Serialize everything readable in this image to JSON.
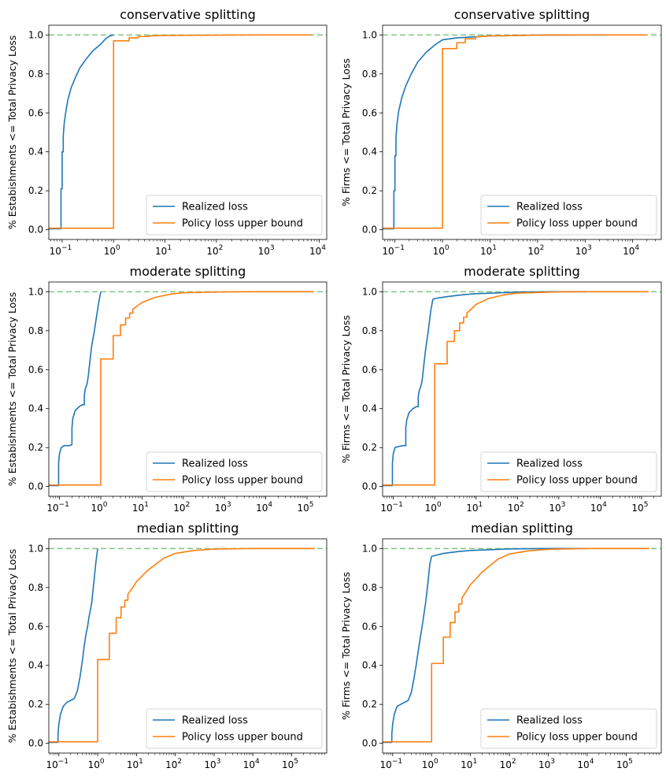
{
  "colors": {
    "realized": "#1f77b4",
    "policy": "#ff7f0e",
    "reference": "#2ca02c"
  },
  "legend_labels": [
    "Realized loss",
    "Policy loss upper bound"
  ],
  "chart_data": [
    {
      "type": "line",
      "title": "conservative splitting",
      "ylabel": "% Estabishments <= Total Privacy Loss",
      "xlabel": "",
      "xscale": "log",
      "xlim": [
        0.055,
        14000
      ],
      "ylim": [
        -0.05,
        1.05
      ],
      "xticks": [
        {
          "exp": "-1",
          "value": 0.1
        },
        {
          "exp": "0",
          "value": 1
        },
        {
          "exp": "1",
          "value": 10
        },
        {
          "exp": "2",
          "value": 100
        },
        {
          "exp": "3",
          "value": 1000
        },
        {
          "exp": "4",
          "value": 10000
        }
      ],
      "yticks": [
        "0.0",
        "0.2",
        "0.4",
        "0.6",
        "0.8",
        "1.0"
      ],
      "legend_position": "lower right",
      "reference_line": {
        "y": 1.0,
        "style": "dashed"
      },
      "series": [
        {
          "name": "Realized loss",
          "x": [
            0.05,
            0.095,
            0.095,
            0.1,
            0.1,
            0.105,
            0.105,
            0.11,
            0.12,
            0.13,
            0.15,
            0.18,
            0.22,
            0.3,
            0.4,
            0.55,
            0.7,
            0.85,
            1.0
          ],
          "y": [
            0.005,
            0.005,
            0.21,
            0.21,
            0.4,
            0.4,
            0.48,
            0.55,
            0.62,
            0.67,
            0.73,
            0.78,
            0.83,
            0.88,
            0.92,
            0.95,
            0.98,
            0.995,
            1.0
          ]
        },
        {
          "name": "Policy loss upper bound",
          "x": [
            0.05,
            1.0,
            1.0,
            2.0,
            2.0,
            3.0,
            3.0,
            5.0,
            5.0,
            10,
            100,
            1000,
            7000
          ],
          "y": [
            0.008,
            0.008,
            0.97,
            0.97,
            0.985,
            0.985,
            0.992,
            0.992,
            0.995,
            0.997,
            0.999,
            1.0,
            1.0
          ]
        }
      ]
    },
    {
      "type": "line",
      "title": "conservative splitting",
      "ylabel": "% Firms <= Total Privacy Loss",
      "xlabel": "",
      "xscale": "log",
      "xlim": [
        0.055,
        40000
      ],
      "ylim": [
        -0.05,
        1.05
      ],
      "xticks": [
        {
          "exp": "-1",
          "value": 0.1
        },
        {
          "exp": "0",
          "value": 1
        },
        {
          "exp": "1",
          "value": 10
        },
        {
          "exp": "2",
          "value": 100
        },
        {
          "exp": "3",
          "value": 1000
        },
        {
          "exp": "4",
          "value": 10000
        }
      ],
      "yticks": [
        "0.0",
        "0.2",
        "0.4",
        "0.6",
        "0.8",
        "1.0"
      ],
      "legend_position": "lower right",
      "reference_line": {
        "y": 1.0,
        "style": "dashed"
      },
      "series": [
        {
          "name": "Realized loss",
          "x": [
            0.05,
            0.095,
            0.095,
            0.1,
            0.1,
            0.105,
            0.105,
            0.11,
            0.12,
            0.14,
            0.17,
            0.22,
            0.3,
            0.45,
            0.7,
            1.0,
            2.0,
            10,
            100,
            1000,
            3000
          ],
          "y": [
            0.005,
            0.005,
            0.2,
            0.2,
            0.38,
            0.38,
            0.47,
            0.54,
            0.61,
            0.68,
            0.74,
            0.8,
            0.86,
            0.91,
            0.95,
            0.975,
            0.985,
            0.995,
            0.999,
            1.0,
            1.0
          ]
        },
        {
          "name": "Policy loss upper bound",
          "x": [
            0.05,
            1.0,
            1.0,
            2.0,
            2.0,
            3.0,
            3.0,
            5.0,
            5.0,
            10,
            100,
            1000,
            20000
          ],
          "y": [
            0.008,
            0.008,
            0.93,
            0.93,
            0.96,
            0.96,
            0.98,
            0.98,
            0.99,
            0.995,
            0.999,
            1.0,
            1.0
          ]
        }
      ]
    },
    {
      "type": "line",
      "title": "moderate splitting",
      "ylabel": "% Estabishments <= Total Privacy Loss",
      "xlabel": "",
      "xscale": "log",
      "xlim": [
        0.055,
        300000
      ],
      "ylim": [
        -0.05,
        1.05
      ],
      "xticks": [
        {
          "exp": "-1",
          "value": 0.1
        },
        {
          "exp": "0",
          "value": 1
        },
        {
          "exp": "1",
          "value": 10
        },
        {
          "exp": "2",
          "value": 100
        },
        {
          "exp": "3",
          "value": 1000
        },
        {
          "exp": "4",
          "value": 10000
        },
        {
          "exp": "5",
          "value": 100000
        }
      ],
      "yticks": [
        "0.0",
        "0.2",
        "0.4",
        "0.6",
        "0.8",
        "1.0"
      ],
      "legend_position": "lower right",
      "reference_line": {
        "y": 1.0,
        "style": "dashed"
      },
      "series": [
        {
          "name": "Realized loss",
          "x": [
            0.05,
            0.095,
            0.095,
            0.1,
            0.11,
            0.13,
            0.17,
            0.2,
            0.2,
            0.21,
            0.24,
            0.3,
            0.36,
            0.4,
            0.4,
            0.42,
            0.47,
            0.5,
            0.55,
            0.6,
            0.7,
            0.8,
            0.9,
            1.0
          ],
          "y": [
            0.005,
            0.005,
            0.12,
            0.17,
            0.2,
            0.21,
            0.21,
            0.215,
            0.3,
            0.35,
            0.39,
            0.41,
            0.42,
            0.42,
            0.47,
            0.5,
            0.53,
            0.57,
            0.65,
            0.72,
            0.8,
            0.88,
            0.95,
            1.0
          ]
        },
        {
          "name": "Policy loss upper bound",
          "x": [
            0.05,
            1.0,
            1.0,
            2.0,
            2.0,
            3.0,
            3.0,
            4.0,
            4.0,
            5.0,
            5.0,
            6.0,
            6.0,
            8.0,
            10,
            20,
            50,
            100,
            1000,
            10000,
            150000
          ],
          "y": [
            0.008,
            0.008,
            0.655,
            0.655,
            0.775,
            0.775,
            0.83,
            0.83,
            0.865,
            0.865,
            0.89,
            0.89,
            0.91,
            0.93,
            0.945,
            0.97,
            0.988,
            0.995,
            0.999,
            1.0,
            1.0
          ]
        }
      ]
    },
    {
      "type": "line",
      "title": "moderate splitting",
      "ylabel": "% Firms <= Total Privacy Loss",
      "xlabel": "",
      "xscale": "log",
      "xlim": [
        0.055,
        300000
      ],
      "ylim": [
        -0.05,
        1.05
      ],
      "xticks": [
        {
          "exp": "-1",
          "value": 0.1
        },
        {
          "exp": "0",
          "value": 1
        },
        {
          "exp": "1",
          "value": 10
        },
        {
          "exp": "2",
          "value": 100
        },
        {
          "exp": "3",
          "value": 1000
        },
        {
          "exp": "4",
          "value": 10000
        },
        {
          "exp": "5",
          "value": 100000
        }
      ],
      "yticks": [
        "0.0",
        "0.2",
        "0.4",
        "0.6",
        "0.8",
        "1.0"
      ],
      "legend_position": "lower right",
      "reference_line": {
        "y": 1.0,
        "style": "dashed"
      },
      "series": [
        {
          "name": "Realized loss",
          "x": [
            0.05,
            0.095,
            0.095,
            0.1,
            0.11,
            0.13,
            0.17,
            0.2,
            0.2,
            0.21,
            0.24,
            0.3,
            0.36,
            0.4,
            0.4,
            0.42,
            0.47,
            0.5,
            0.55,
            0.6,
            0.7,
            0.8,
            0.9,
            1.0,
            2.0,
            5.0,
            10,
            100,
            1000,
            5000
          ],
          "y": [
            0.005,
            0.005,
            0.12,
            0.17,
            0.2,
            0.205,
            0.21,
            0.21,
            0.3,
            0.34,
            0.38,
            0.4,
            0.41,
            0.41,
            0.46,
            0.49,
            0.52,
            0.55,
            0.63,
            0.7,
            0.8,
            0.9,
            0.96,
            0.965,
            0.975,
            0.985,
            0.99,
            0.998,
            1.0,
            1.0
          ]
        },
        {
          "name": "Policy loss upper bound",
          "x": [
            0.05,
            1.0,
            1.0,
            2.0,
            2.0,
            3.0,
            3.0,
            4.0,
            4.0,
            5.0,
            5.0,
            6.0,
            6.0,
            8.0,
            10,
            20,
            50,
            100,
            1000,
            10000,
            150000
          ],
          "y": [
            0.008,
            0.008,
            0.63,
            0.63,
            0.745,
            0.745,
            0.8,
            0.8,
            0.84,
            0.84,
            0.87,
            0.87,
            0.89,
            0.915,
            0.935,
            0.965,
            0.985,
            0.993,
            0.999,
            1.0,
            1.0
          ]
        }
      ]
    },
    {
      "type": "line",
      "title": "median splitting",
      "ylabel": "% Estabishments <= Total Privacy Loss",
      "xlabel": "",
      "xscale": "log",
      "xlim": [
        0.055,
        800000
      ],
      "ylim": [
        -0.05,
        1.05
      ],
      "xticks": [
        {
          "exp": "-1",
          "value": 0.1
        },
        {
          "exp": "0",
          "value": 1
        },
        {
          "exp": "1",
          "value": 10
        },
        {
          "exp": "2",
          "value": 100
        },
        {
          "exp": "3",
          "value": 1000
        },
        {
          "exp": "4",
          "value": 10000
        },
        {
          "exp": "5",
          "value": 100000
        }
      ],
      "yticks": [
        "0.0",
        "0.2",
        "0.4",
        "0.6",
        "0.8",
        "1.0"
      ],
      "legend_position": "lower right",
      "reference_line": {
        "y": 1.0,
        "style": "dashed"
      },
      "series": [
        {
          "name": "Realized loss",
          "x": [
            0.05,
            0.095,
            0.095,
            0.1,
            0.11,
            0.13,
            0.16,
            0.2,
            0.25,
            0.3,
            0.35,
            0.4,
            0.45,
            0.5,
            0.55,
            0.6,
            0.7,
            0.8,
            0.9,
            1.0
          ],
          "y": [
            0.005,
            0.005,
            0.05,
            0.1,
            0.15,
            0.19,
            0.21,
            0.22,
            0.23,
            0.27,
            0.34,
            0.42,
            0.5,
            0.56,
            0.6,
            0.65,
            0.72,
            0.83,
            0.93,
            1.0
          ]
        },
        {
          "name": "Policy loss upper bound",
          "x": [
            0.05,
            1.0,
            1.0,
            2.0,
            2.0,
            3.0,
            3.0,
            4.0,
            4.0,
            5.0,
            5.0,
            6.0,
            6.0,
            8.0,
            10,
            20,
            50,
            100,
            300,
            1000,
            10000,
            400000
          ],
          "y": [
            0.008,
            0.008,
            0.43,
            0.43,
            0.565,
            0.565,
            0.645,
            0.645,
            0.7,
            0.7,
            0.735,
            0.735,
            0.765,
            0.8,
            0.83,
            0.89,
            0.95,
            0.975,
            0.99,
            0.997,
            1.0,
            1.0
          ]
        }
      ]
    },
    {
      "type": "line",
      "title": "median splitting",
      "ylabel": "% Firms <= Total Privacy Loss",
      "xlabel": "",
      "xscale": "log",
      "xlim": [
        0.055,
        800000
      ],
      "ylim": [
        -0.05,
        1.05
      ],
      "xticks": [
        {
          "exp": "-1",
          "value": 0.1
        },
        {
          "exp": "0",
          "value": 1
        },
        {
          "exp": "1",
          "value": 10
        },
        {
          "exp": "2",
          "value": 100
        },
        {
          "exp": "3",
          "value": 1000
        },
        {
          "exp": "4",
          "value": 10000
        },
        {
          "exp": "5",
          "value": 100000
        }
      ],
      "yticks": [
        "0.0",
        "0.2",
        "0.4",
        "0.6",
        "0.8",
        "1.0"
      ],
      "legend_position": "lower right",
      "reference_line": {
        "y": 1.0,
        "style": "dashed"
      },
      "series": [
        {
          "name": "Realized loss",
          "x": [
            0.05,
            0.095,
            0.095,
            0.1,
            0.11,
            0.13,
            0.16,
            0.2,
            0.25,
            0.3,
            0.35,
            0.4,
            0.45,
            0.5,
            0.55,
            0.6,
            0.7,
            0.8,
            0.9,
            1.0,
            2.0,
            5.0,
            10,
            100,
            1000,
            10000
          ],
          "y": [
            0.005,
            0.005,
            0.05,
            0.1,
            0.15,
            0.19,
            0.2,
            0.21,
            0.22,
            0.26,
            0.33,
            0.4,
            0.47,
            0.53,
            0.58,
            0.63,
            0.72,
            0.82,
            0.92,
            0.96,
            0.975,
            0.985,
            0.99,
            0.998,
            1.0,
            1.0
          ]
        },
        {
          "name": "Policy loss upper bound",
          "x": [
            0.05,
            1.0,
            1.0,
            2.0,
            2.0,
            3.0,
            3.0,
            4.0,
            4.0,
            5.0,
            5.0,
            6.0,
            6.0,
            8.0,
            10,
            20,
            50,
            100,
            300,
            1000,
            10000,
            400000
          ],
          "y": [
            0.008,
            0.008,
            0.41,
            0.41,
            0.545,
            0.545,
            0.62,
            0.62,
            0.675,
            0.675,
            0.715,
            0.715,
            0.745,
            0.785,
            0.815,
            0.88,
            0.945,
            0.972,
            0.988,
            0.996,
            1.0,
            1.0
          ]
        }
      ]
    }
  ]
}
